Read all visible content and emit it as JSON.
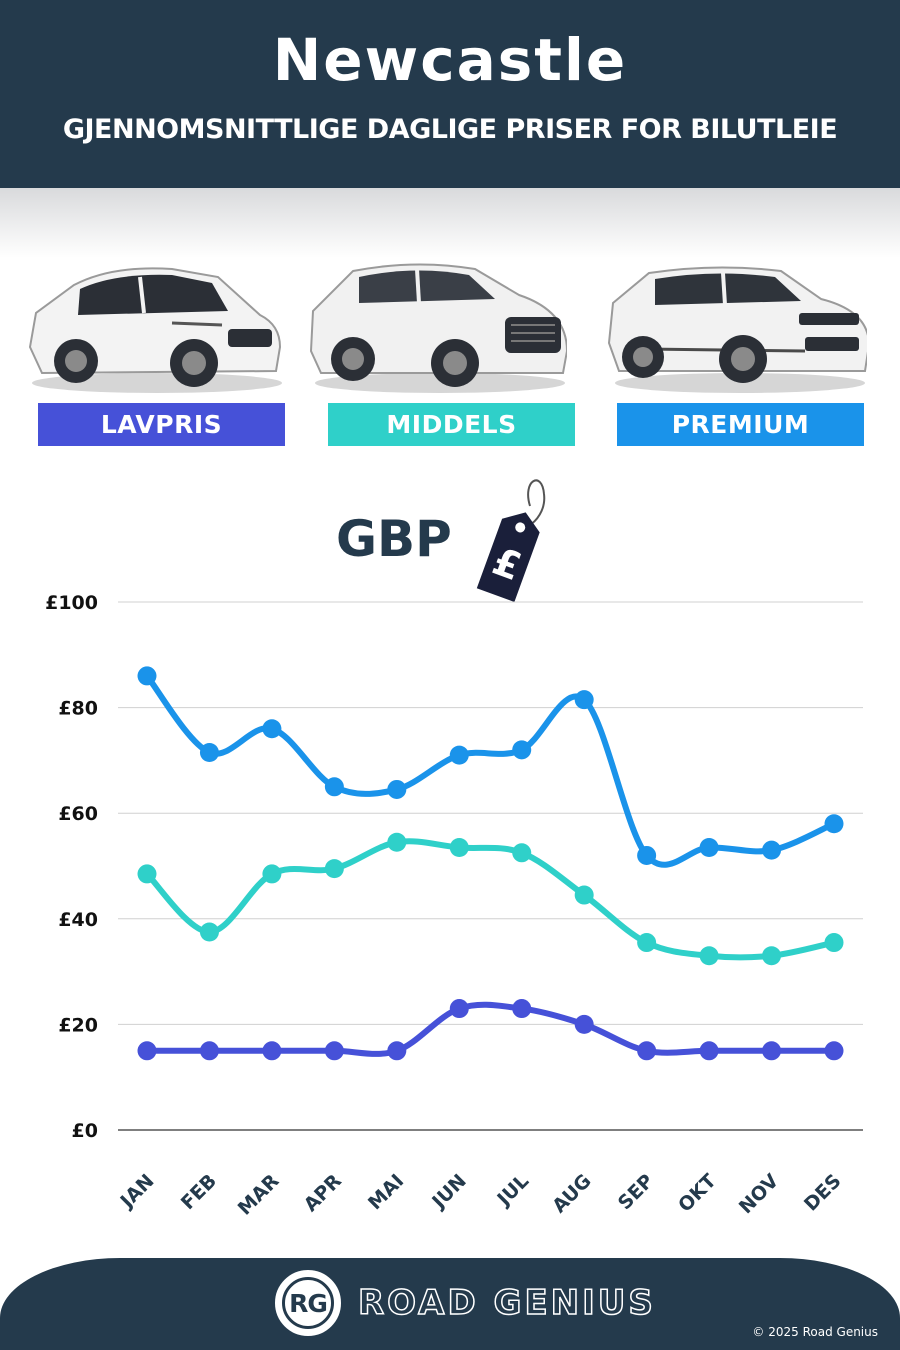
{
  "header": {
    "city": "Newcastle",
    "subtitle": "GJENNOMSNITTLIGE DAGLIGE PRISER FOR BILUTLEIE"
  },
  "categories": [
    {
      "label": "LAVPRIS",
      "color": "#4651d8"
    },
    {
      "label": "MIDDELS",
      "color": "#2fd0c9"
    },
    {
      "label": "PREMIUM",
      "color": "#1a93ea"
    }
  ],
  "currency": {
    "code": "GBP",
    "symbol": "£"
  },
  "chart_data": {
    "type": "line",
    "categories": [
      "JAN",
      "FEB",
      "MAR",
      "APR",
      "MAI",
      "JUN",
      "JUL",
      "AUG",
      "SEP",
      "OKT",
      "NOV",
      "DES"
    ],
    "y_ticks": [
      "£0",
      "£20",
      "£40",
      "£60",
      "£80",
      "£100"
    ],
    "ylim": [
      0,
      100
    ],
    "grid": true,
    "series": [
      {
        "name": "PREMIUM",
        "color": "#1a93ea",
        "values": [
          86,
          71.5,
          76,
          65,
          64.5,
          71,
          72,
          81.5,
          52,
          53.5,
          53,
          58
        ]
      },
      {
        "name": "MIDDELS",
        "color": "#2fd0c9",
        "values": [
          48.5,
          37.5,
          48.5,
          49.5,
          54.5,
          53.5,
          52.5,
          44.5,
          35.5,
          33,
          33,
          35.5
        ]
      },
      {
        "name": "LAVPRIS",
        "color": "#4651d8",
        "values": [
          15,
          15,
          15,
          15,
          15,
          23,
          23,
          20,
          15,
          15,
          15,
          15
        ]
      }
    ]
  },
  "footer": {
    "logo_letters": "RG",
    "brand": "ROAD GENIUS",
    "copyright": "© 2025 Road Genius"
  }
}
